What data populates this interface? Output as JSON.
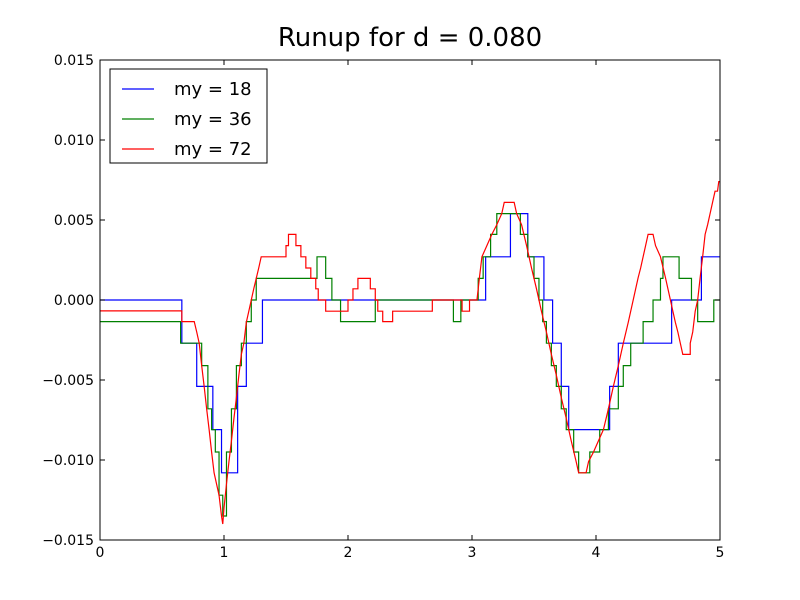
{
  "chart_data": {
    "type": "line",
    "title": "Runup for d = 0.080",
    "xlabel": "",
    "ylabel": "",
    "xlim": [
      0,
      5
    ],
    "ylim": [
      -0.015,
      0.015
    ],
    "x_ticks": [
      0,
      1,
      2,
      3,
      4,
      5
    ],
    "x_tick_labels": [
      "0",
      "1",
      "2",
      "3",
      "4",
      "5"
    ],
    "y_ticks": [
      -0.015,
      -0.01,
      -0.005,
      0.0,
      0.005,
      0.01,
      0.015
    ],
    "y_tick_labels": [
      "−0.015",
      "−0.010",
      "−0.005",
      "0.000",
      "0.005",
      "0.010",
      "0.015"
    ],
    "grid": false,
    "legend_position": "top-left",
    "series": [
      {
        "name": "my = 18",
        "color": "#0000ff",
        "points": [
          [
            0.0,
            0.0
          ],
          [
            0.66,
            0.0
          ],
          [
            0.66,
            -0.0027
          ],
          [
            0.78,
            -0.0027
          ],
          [
            0.78,
            -0.0054
          ],
          [
            0.91,
            -0.0054
          ],
          [
            0.91,
            -0.0081
          ],
          [
            0.98,
            -0.0081
          ],
          [
            0.98,
            -0.0108
          ],
          [
            1.11,
            -0.0108
          ],
          [
            1.11,
            -0.0054
          ],
          [
            1.18,
            -0.0054
          ],
          [
            1.18,
            -0.0027
          ],
          [
            1.31,
            -0.0027
          ],
          [
            1.31,
            0.0
          ],
          [
            3.11,
            0.0
          ],
          [
            3.11,
            0.0027
          ],
          [
            3.31,
            0.0027
          ],
          [
            3.31,
            0.0054
          ],
          [
            3.45,
            0.0054
          ],
          [
            3.45,
            0.0027
          ],
          [
            3.58,
            0.0027
          ],
          [
            3.58,
            0.0
          ],
          [
            3.65,
            0.0
          ],
          [
            3.65,
            -0.0027
          ],
          [
            3.72,
            -0.0027
          ],
          [
            3.72,
            -0.0054
          ],
          [
            3.78,
            -0.0054
          ],
          [
            3.78,
            -0.0081
          ],
          [
            4.11,
            -0.0081
          ],
          [
            4.11,
            -0.0054
          ],
          [
            4.18,
            -0.0054
          ],
          [
            4.18,
            -0.0027
          ],
          [
            4.61,
            -0.0027
          ],
          [
            4.61,
            0.0
          ],
          [
            4.85,
            0.0
          ],
          [
            4.85,
            0.0027
          ],
          [
            5.0,
            0.0027
          ]
        ]
      },
      {
        "name": "my = 36",
        "color": "#008000",
        "points": [
          [
            0.0,
            -0.00135
          ],
          [
            0.65,
            -0.00135
          ],
          [
            0.65,
            -0.0027
          ],
          [
            0.82,
            -0.0027
          ],
          [
            0.82,
            -0.0041
          ],
          [
            0.87,
            -0.0041
          ],
          [
            0.87,
            -0.0068
          ],
          [
            0.9,
            -0.0068
          ],
          [
            0.9,
            -0.0081
          ],
          [
            0.93,
            -0.0081
          ],
          [
            0.93,
            -0.0095
          ],
          [
            0.96,
            -0.0095
          ],
          [
            0.96,
            -0.0122
          ],
          [
            0.99,
            -0.0122
          ],
          [
            0.99,
            -0.0135
          ],
          [
            1.02,
            -0.0135
          ],
          [
            1.02,
            -0.0095
          ],
          [
            1.06,
            -0.0095
          ],
          [
            1.06,
            -0.0068
          ],
          [
            1.1,
            -0.0068
          ],
          [
            1.1,
            -0.0041
          ],
          [
            1.14,
            -0.0041
          ],
          [
            1.14,
            -0.0027
          ],
          [
            1.18,
            -0.0027
          ],
          [
            1.18,
            -0.00135
          ],
          [
            1.22,
            -0.00135
          ],
          [
            1.22,
            0.0
          ],
          [
            1.26,
            0.0
          ],
          [
            1.26,
            0.00135
          ],
          [
            1.75,
            0.00135
          ],
          [
            1.75,
            0.0027
          ],
          [
            1.82,
            0.0027
          ],
          [
            1.82,
            0.00135
          ],
          [
            1.87,
            0.00135
          ],
          [
            1.87,
            0.0
          ],
          [
            1.94,
            0.0
          ],
          [
            1.94,
            -0.00135
          ],
          [
            2.22,
            -0.00135
          ],
          [
            2.22,
            0.0
          ],
          [
            2.85,
            0.0
          ],
          [
            2.85,
            -0.00135
          ],
          [
            2.91,
            -0.00135
          ],
          [
            2.91,
            0.0
          ],
          [
            3.05,
            0.0
          ],
          [
            3.05,
            0.00135
          ],
          [
            3.09,
            0.00135
          ],
          [
            3.09,
            0.0027
          ],
          [
            3.15,
            0.0027
          ],
          [
            3.15,
            0.0041
          ],
          [
            3.2,
            0.0041
          ],
          [
            3.2,
            0.0054
          ],
          [
            3.39,
            0.0054
          ],
          [
            3.39,
            0.0041
          ],
          [
            3.45,
            0.0041
          ],
          [
            3.45,
            0.0027
          ],
          [
            3.5,
            0.0027
          ],
          [
            3.5,
            0.00135
          ],
          [
            3.54,
            0.00135
          ],
          [
            3.54,
            0.0
          ],
          [
            3.57,
            0.0
          ],
          [
            3.57,
            -0.00135
          ],
          [
            3.6,
            -0.00135
          ],
          [
            3.6,
            -0.0027
          ],
          [
            3.64,
            -0.0027
          ],
          [
            3.64,
            -0.0041
          ],
          [
            3.68,
            -0.0041
          ],
          [
            3.68,
            -0.0054
          ],
          [
            3.72,
            -0.0054
          ],
          [
            3.72,
            -0.0068
          ],
          [
            3.76,
            -0.0068
          ],
          [
            3.76,
            -0.0081
          ],
          [
            3.82,
            -0.0081
          ],
          [
            3.82,
            -0.0095
          ],
          [
            3.86,
            -0.0095
          ],
          [
            3.86,
            -0.0108
          ],
          [
            3.95,
            -0.0108
          ],
          [
            3.95,
            -0.0095
          ],
          [
            4.03,
            -0.0095
          ],
          [
            4.03,
            -0.0081
          ],
          [
            4.1,
            -0.0081
          ],
          [
            4.1,
            -0.0068
          ],
          [
            4.18,
            -0.0068
          ],
          [
            4.18,
            -0.0054
          ],
          [
            4.22,
            -0.0054
          ],
          [
            4.22,
            -0.0041
          ],
          [
            4.28,
            -0.0041
          ],
          [
            4.28,
            -0.0027
          ],
          [
            4.38,
            -0.0027
          ],
          [
            4.38,
            -0.00135
          ],
          [
            4.46,
            -0.00135
          ],
          [
            4.46,
            0.0
          ],
          [
            4.52,
            0.0
          ],
          [
            4.52,
            0.00135
          ],
          [
            4.54,
            0.00135
          ],
          [
            4.54,
            0.0027
          ],
          [
            4.67,
            0.0027
          ],
          [
            4.67,
            0.00135
          ],
          [
            4.77,
            0.00135
          ],
          [
            4.77,
            0.0
          ],
          [
            4.82,
            0.0
          ],
          [
            4.82,
            -0.00135
          ],
          [
            4.95,
            -0.00135
          ],
          [
            4.95,
            0.0
          ],
          [
            5.0,
            0.0
          ]
        ]
      },
      {
        "name": "my = 72",
        "color": "#ff0000",
        "points": [
          [
            0.0,
            -0.00068
          ],
          [
            0.66,
            -0.00068
          ],
          [
            0.66,
            -0.00135
          ],
          [
            0.76,
            -0.00135
          ],
          [
            0.78,
            -0.002
          ],
          [
            0.8,
            -0.0027
          ],
          [
            0.82,
            -0.0041
          ],
          [
            0.84,
            -0.0054
          ],
          [
            0.86,
            -0.0068
          ],
          [
            0.88,
            -0.0081
          ],
          [
            0.9,
            -0.0095
          ],
          [
            0.92,
            -0.0108
          ],
          [
            0.94,
            -0.0115
          ],
          [
            0.96,
            -0.0122
          ],
          [
            0.98,
            -0.0135
          ],
          [
            0.99,
            -0.014
          ],
          [
            1.0,
            -0.013
          ],
          [
            1.02,
            -0.0115
          ],
          [
            1.04,
            -0.0101
          ],
          [
            1.06,
            -0.0088
          ],
          [
            1.08,
            -0.0074
          ],
          [
            1.1,
            -0.0061
          ],
          [
            1.12,
            -0.0047
          ],
          [
            1.14,
            -0.0034
          ],
          [
            1.16,
            -0.0027
          ],
          [
            1.18,
            -0.0014
          ],
          [
            1.2,
            -0.0007
          ],
          [
            1.22,
            0.0
          ],
          [
            1.24,
            0.0007
          ],
          [
            1.26,
            0.00135
          ],
          [
            1.28,
            0.002
          ],
          [
            1.3,
            0.0027
          ],
          [
            1.5,
            0.0027
          ],
          [
            1.5,
            0.0034
          ],
          [
            1.52,
            0.0034
          ],
          [
            1.52,
            0.0041
          ],
          [
            1.58,
            0.0041
          ],
          [
            1.58,
            0.0034
          ],
          [
            1.62,
            0.0034
          ],
          [
            1.62,
            0.0027
          ],
          [
            1.66,
            0.0027
          ],
          [
            1.66,
            0.002
          ],
          [
            1.7,
            0.002
          ],
          [
            1.7,
            0.00135
          ],
          [
            1.74,
            0.00135
          ],
          [
            1.74,
            0.0007
          ],
          [
            1.76,
            0.0007
          ],
          [
            1.76,
            0.0
          ],
          [
            1.82,
            0.0
          ],
          [
            1.82,
            -0.0007
          ],
          [
            2.0,
            -0.0007
          ],
          [
            2.0,
            0.0
          ],
          [
            2.04,
            0.0
          ],
          [
            2.04,
            0.0007
          ],
          [
            2.08,
            0.0007
          ],
          [
            2.08,
            0.00135
          ],
          [
            2.18,
            0.00135
          ],
          [
            2.18,
            0.0007
          ],
          [
            2.22,
            0.0007
          ],
          [
            2.22,
            0.0
          ],
          [
            2.24,
            0.0
          ],
          [
            2.24,
            -0.0007
          ],
          [
            2.28,
            -0.0007
          ],
          [
            2.28,
            -0.00135
          ],
          [
            2.36,
            -0.00135
          ],
          [
            2.36,
            -0.0007
          ],
          [
            2.68,
            -0.0007
          ],
          [
            2.68,
            0.0
          ],
          [
            2.92,
            0.0
          ],
          [
            2.92,
            -0.0007
          ],
          [
            2.98,
            -0.0007
          ],
          [
            2.98,
            0.0
          ],
          [
            3.04,
            0.0
          ],
          [
            3.06,
            0.0014
          ],
          [
            3.08,
            0.0027
          ],
          [
            3.12,
            0.0034
          ],
          [
            3.16,
            0.0041
          ],
          [
            3.2,
            0.0047
          ],
          [
            3.24,
            0.0054
          ],
          [
            3.26,
            0.0061
          ],
          [
            3.34,
            0.0061
          ],
          [
            3.36,
            0.0054
          ],
          [
            3.4,
            0.0047
          ],
          [
            3.44,
            0.0034
          ],
          [
            3.48,
            0.002
          ],
          [
            3.52,
            0.0007
          ],
          [
            3.56,
            -0.0007
          ],
          [
            3.6,
            -0.002
          ],
          [
            3.64,
            -0.0034
          ],
          [
            3.68,
            -0.0047
          ],
          [
            3.72,
            -0.0061
          ],
          [
            3.76,
            -0.0074
          ],
          [
            3.8,
            -0.0088
          ],
          [
            3.84,
            -0.0101
          ],
          [
            3.86,
            -0.0108
          ],
          [
            3.92,
            -0.0108
          ],
          [
            3.94,
            -0.0101
          ],
          [
            3.98,
            -0.0095
          ],
          [
            4.02,
            -0.0088
          ],
          [
            4.06,
            -0.0081
          ],
          [
            4.1,
            -0.0068
          ],
          [
            4.14,
            -0.0054
          ],
          [
            4.18,
            -0.0041
          ],
          [
            4.22,
            -0.0027
          ],
          [
            4.26,
            -0.0014
          ],
          [
            4.3,
            0.0
          ],
          [
            4.32,
            0.0007
          ],
          [
            4.34,
            0.0014
          ],
          [
            4.36,
            0.002
          ],
          [
            4.38,
            0.0027
          ],
          [
            4.4,
            0.0034
          ],
          [
            4.42,
            0.0041
          ],
          [
            4.46,
            0.0041
          ],
          [
            4.48,
            0.0034
          ],
          [
            4.52,
            0.0027
          ],
          [
            4.56,
            0.0014
          ],
          [
            4.6,
            0.0
          ],
          [
            4.62,
            -0.0007
          ],
          [
            4.64,
            -0.0014
          ],
          [
            4.66,
            -0.002
          ],
          [
            4.68,
            -0.0027
          ],
          [
            4.7,
            -0.0034
          ],
          [
            4.76,
            -0.0034
          ],
          [
            4.76,
            -0.0027
          ],
          [
            4.78,
            -0.002
          ],
          [
            4.8,
            -0.0007
          ],
          [
            4.82,
            0.0
          ],
          [
            4.84,
            0.0014
          ],
          [
            4.86,
            0.0027
          ],
          [
            4.88,
            0.0041
          ],
          [
            4.9,
            0.0047
          ],
          [
            4.92,
            0.0054
          ],
          [
            4.94,
            0.0061
          ],
          [
            4.96,
            0.0068
          ],
          [
            4.98,
            0.0068
          ],
          [
            4.99,
            0.0074
          ],
          [
            5.0,
            0.0074
          ]
        ]
      }
    ]
  }
}
